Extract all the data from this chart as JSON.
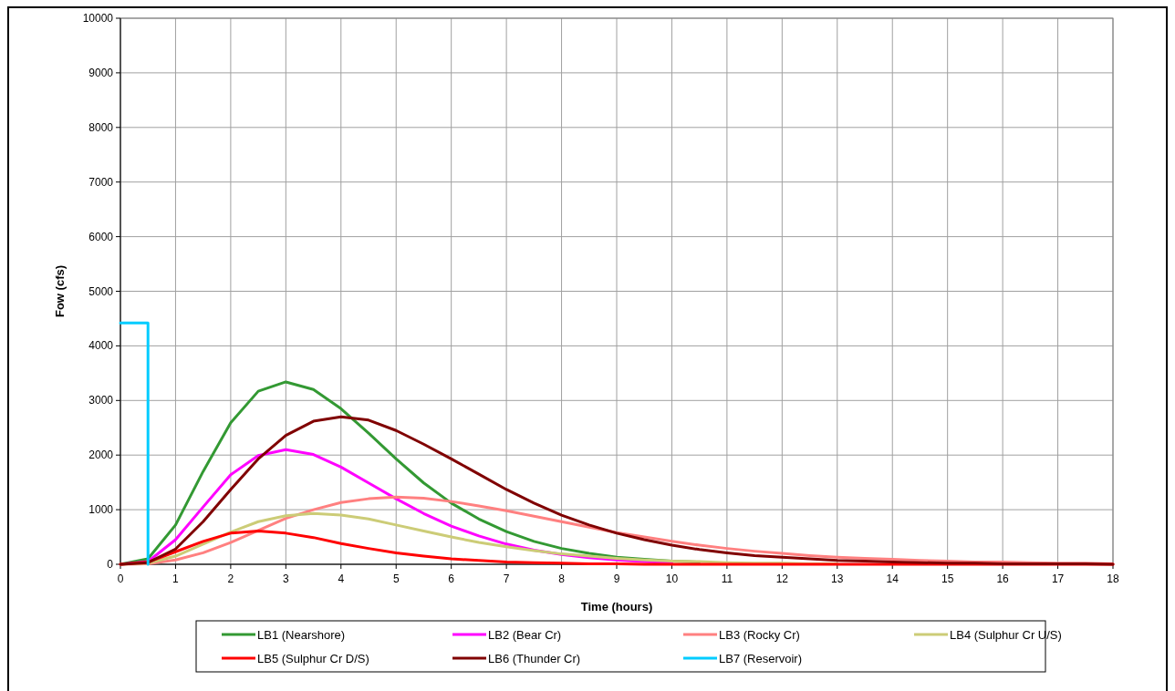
{
  "chart_data": {
    "type": "line",
    "xlabel": "Time (hours)",
    "ylabel": "Fow (cfs)",
    "x": [
      0,
      0.5,
      1,
      1.5,
      2,
      2.5,
      3,
      3.5,
      4,
      4.5,
      5,
      5.5,
      6,
      6.5,
      7,
      7.5,
      8,
      8.5,
      9,
      9.5,
      10,
      10.5,
      11,
      11.5,
      12,
      12.5,
      13,
      13.5,
      14,
      14.5,
      15,
      15.5,
      16,
      16.5,
      17,
      17.5,
      18
    ],
    "series": [
      {
        "name": "LB1 (Nearshore)",
        "color": "#339933",
        "values": [
          0,
          100,
          720,
          1700,
          2590,
          3170,
          3340,
          3200,
          2850,
          2400,
          1930,
          1490,
          1120,
          830,
          600,
          420,
          290,
          200,
          130,
          90,
          60,
          40,
          null,
          null,
          null,
          null,
          null,
          null,
          null,
          null,
          null,
          null,
          null,
          null,
          null,
          null,
          null
        ]
      },
      {
        "name": "LB2 (Bear Cr)",
        "color": "#ff00ff",
        "values": [
          0,
          50,
          450,
          1050,
          1640,
          1990,
          2100,
          2010,
          1780,
          1490,
          1200,
          930,
          700,
          520,
          370,
          260,
          180,
          120,
          80,
          50,
          30,
          null,
          null,
          null,
          null,
          null,
          null,
          null,
          null,
          null,
          null,
          null,
          null,
          null,
          null,
          null,
          null
        ]
      },
      {
        "name": "LB3 (Rocky Cr)",
        "color": "#ff8080",
        "values": [
          0,
          10,
          80,
          210,
          400,
          620,
          840,
          1000,
          1130,
          1200,
          1230,
          1210,
          1150,
          1070,
          980,
          880,
          780,
          680,
          580,
          500,
          420,
          350,
          290,
          240,
          200,
          160,
          130,
          110,
          90,
          70,
          60,
          40,
          40,
          30,
          20,
          20,
          10
        ]
      },
      {
        "name": "LB4 (Sulphur Cr U/S)",
        "color": "#cccc77",
        "values": [
          0,
          20,
          150,
          370,
          590,
          780,
          890,
          930,
          900,
          830,
          720,
          610,
          500,
          400,
          320,
          250,
          190,
          150,
          110,
          80,
          60,
          50,
          30,
          20,
          20,
          10,
          10,
          null,
          null,
          null,
          null,
          null,
          null,
          null,
          null,
          null,
          null
        ]
      },
      {
        "name": "LB5 (Sulphur Cr D/S)",
        "color": "#ff0000",
        "values": [
          0,
          40,
          230,
          420,
          570,
          610,
          570,
          490,
          380,
          290,
          210,
          150,
          100,
          70,
          40,
          30,
          20,
          10,
          10,
          0,
          0,
          0,
          0,
          0,
          0,
          0,
          0,
          0,
          0,
          0,
          0,
          0,
          0,
          0,
          0,
          0,
          0
        ]
      },
      {
        "name": "LB6 (Thunder Cr)",
        "color": "#800000",
        "values": [
          0,
          30,
          280,
          780,
          1370,
          1930,
          2360,
          2620,
          2700,
          2640,
          2450,
          2200,
          1930,
          1650,
          1370,
          1120,
          900,
          720,
          570,
          450,
          350,
          270,
          210,
          160,
          130,
          100,
          70,
          60,
          40,
          30,
          20,
          20,
          10,
          10,
          10,
          10,
          0
        ]
      },
      {
        "name": "LB7 (Reservoir)",
        "color": "#00ccff",
        "type": "step",
        "x": [
          0,
          0.5
        ],
        "values": [
          4420,
          0
        ]
      }
    ],
    "xlim": [
      0,
      18
    ],
    "xticks": [
      0,
      1,
      2,
      3,
      4,
      5,
      6,
      7,
      8,
      9,
      10,
      11,
      12,
      13,
      14,
      15,
      16,
      17,
      18
    ],
    "ylim": [
      0,
      10000
    ],
    "yticks": [
      0,
      1000,
      2000,
      3000,
      4000,
      5000,
      6000,
      7000,
      8000,
      9000,
      10000
    ],
    "grid": true,
    "legend": "bottom",
    "marker": "none",
    "line_style": "solid"
  }
}
